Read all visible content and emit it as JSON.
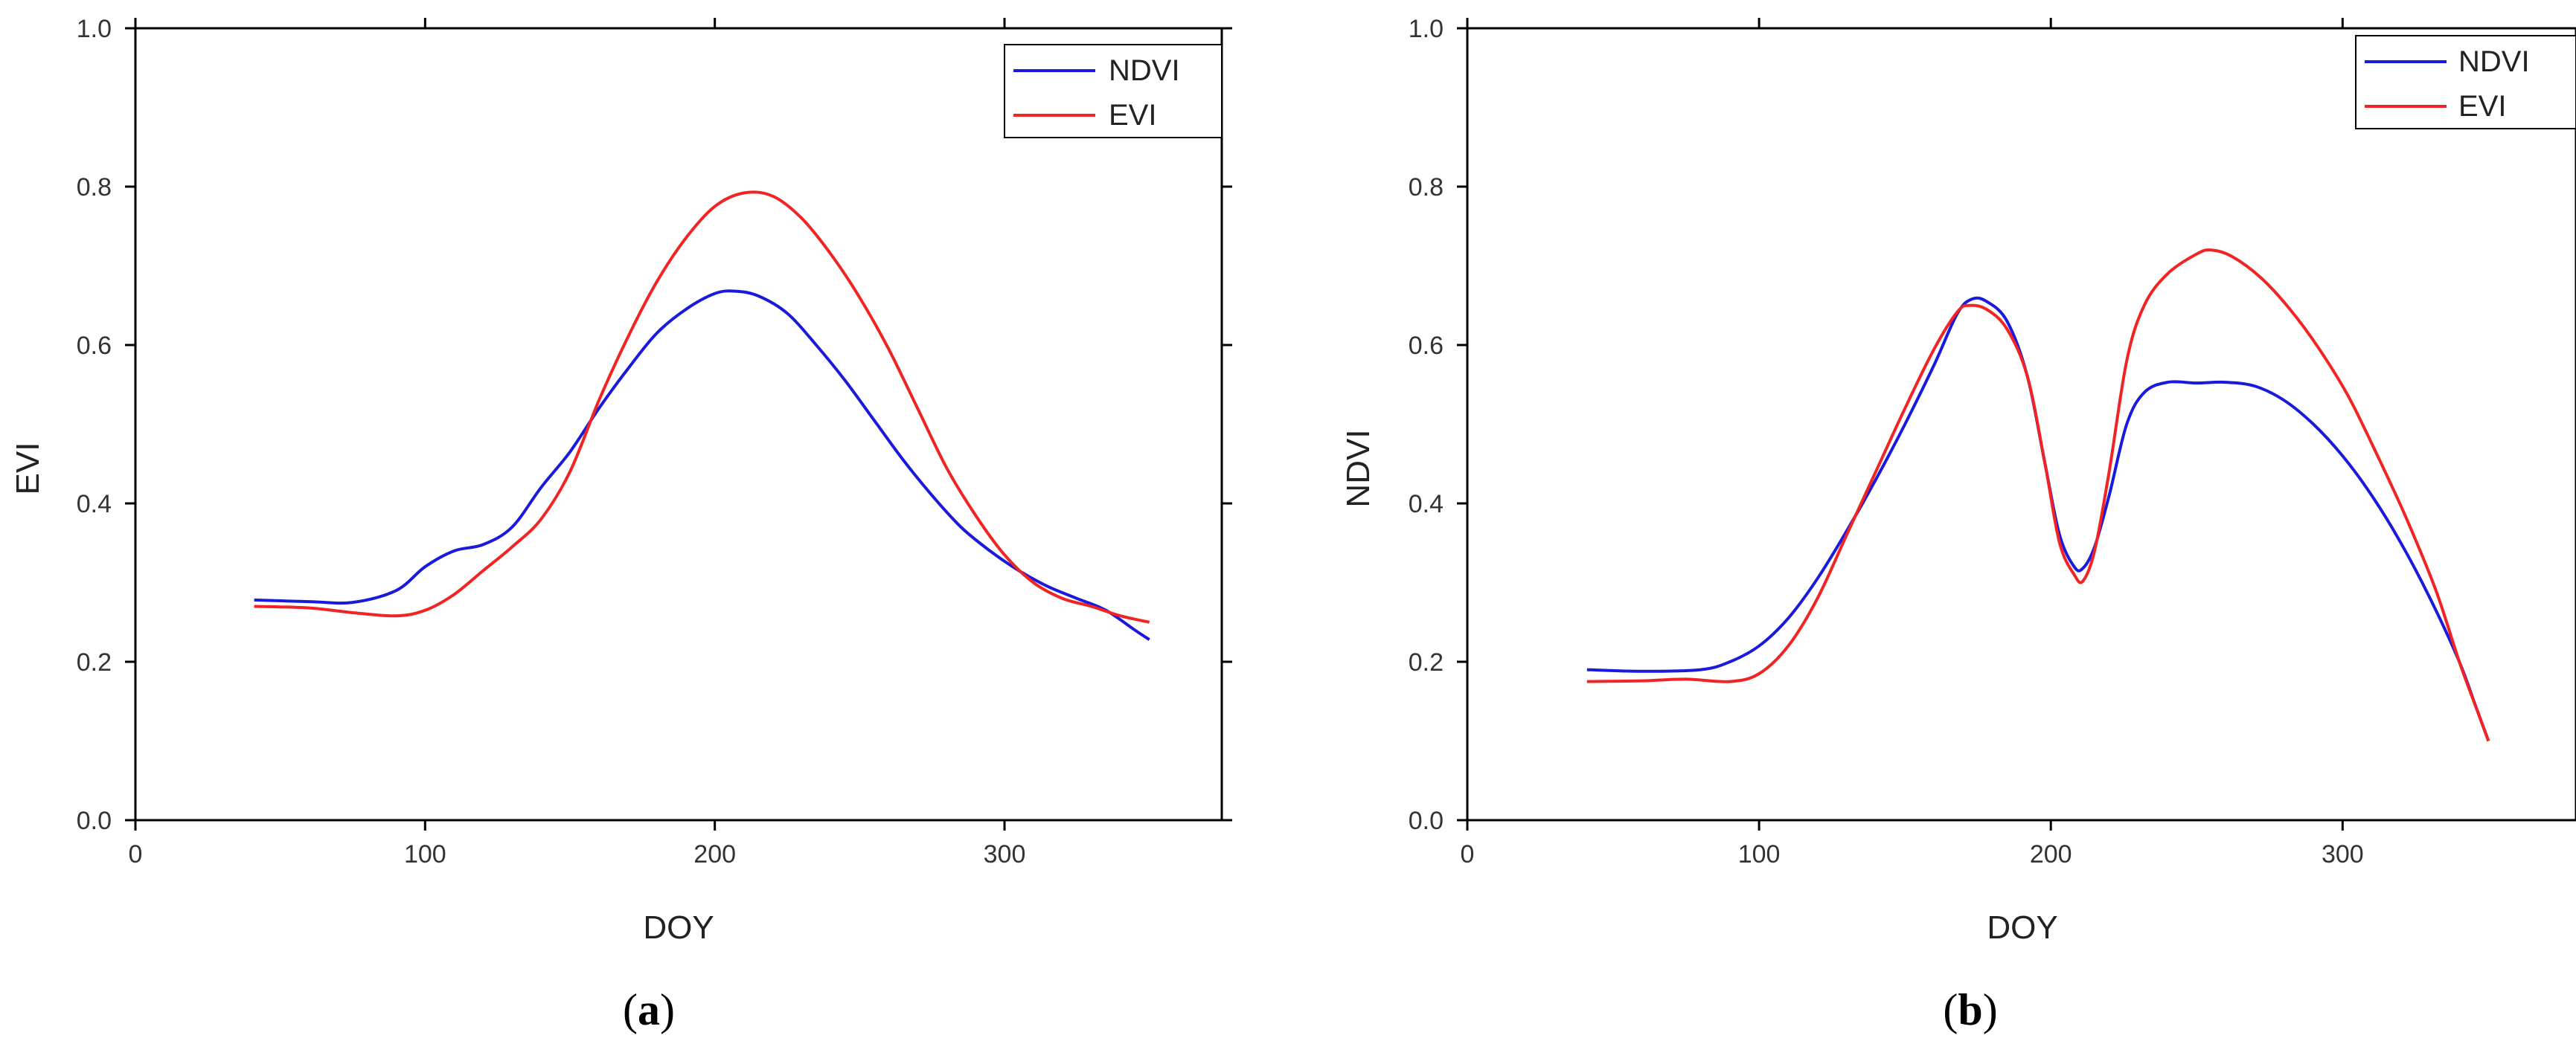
{
  "colors": {
    "ndvi": "#1a1adc",
    "evi": "#f22323",
    "axis": "#000000"
  },
  "chart_data": [
    {
      "type": "line",
      "panel": "(a)",
      "panel_parts": [
        "(",
        "a",
        ")"
      ],
      "xlabel": "DOY",
      "ylabel": "EVI",
      "xlim": [
        0,
        375
      ],
      "ylim": [
        0.0,
        1.0
      ],
      "xticks": [
        0,
        100,
        200,
        300
      ],
      "xtick_labels": [
        "0",
        "100",
        "200",
        "300"
      ],
      "yticks": [
        0.0,
        0.2,
        0.4,
        0.6,
        0.8,
        1.0
      ],
      "ytick_labels": [
        "0.0",
        "0.2",
        "0.4",
        "0.6",
        "0.8",
        "1.0"
      ],
      "legend_position": "top-right",
      "series": [
        {
          "name": "NDVI",
          "color": "#1a1adc",
          "points": [
            [
              41,
              0.278
            ],
            [
              60,
              0.276
            ],
            [
              75,
              0.275
            ],
            [
              90,
              0.29
            ],
            [
              100,
              0.32
            ],
            [
              110,
              0.34
            ],
            [
              120,
              0.348
            ],
            [
              130,
              0.37
            ],
            [
              140,
              0.42
            ],
            [
              150,
              0.465
            ],
            [
              160,
              0.52
            ],
            [
              170,
              0.57
            ],
            [
              180,
              0.615
            ],
            [
              190,
              0.645
            ],
            [
              200,
              0.665
            ],
            [
              207,
              0.668
            ],
            [
              215,
              0.662
            ],
            [
              225,
              0.64
            ],
            [
              235,
              0.6
            ],
            [
              245,
              0.555
            ],
            [
              255,
              0.505
            ],
            [
              265,
              0.455
            ],
            [
              275,
              0.41
            ],
            [
              285,
              0.37
            ],
            [
              295,
              0.34
            ],
            [
              305,
              0.315
            ],
            [
              315,
              0.295
            ],
            [
              325,
              0.28
            ],
            [
              335,
              0.265
            ],
            [
              345,
              0.24
            ],
            [
              350,
              0.228
            ]
          ]
        },
        {
          "name": "EVI",
          "color": "#f22323",
          "points": [
            [
              41,
              0.27
            ],
            [
              60,
              0.268
            ],
            [
              75,
              0.262
            ],
            [
              90,
              0.258
            ],
            [
              100,
              0.265
            ],
            [
              110,
              0.285
            ],
            [
              120,
              0.315
            ],
            [
              130,
              0.345
            ],
            [
              140,
              0.38
            ],
            [
              150,
              0.44
            ],
            [
              160,
              0.53
            ],
            [
              170,
              0.61
            ],
            [
              180,
              0.68
            ],
            [
              190,
              0.735
            ],
            [
              200,
              0.775
            ],
            [
              210,
              0.792
            ],
            [
              220,
              0.788
            ],
            [
              230,
              0.76
            ],
            [
              240,
              0.715
            ],
            [
              250,
              0.66
            ],
            [
              260,
              0.595
            ],
            [
              270,
              0.52
            ],
            [
              280,
              0.445
            ],
            [
              290,
              0.385
            ],
            [
              300,
              0.335
            ],
            [
              310,
              0.3
            ],
            [
              320,
              0.28
            ],
            [
              330,
              0.27
            ],
            [
              340,
              0.258
            ],
            [
              350,
              0.25
            ]
          ]
        }
      ]
    },
    {
      "type": "line",
      "panel": "(b)",
      "panel_parts": [
        "(",
        "b",
        ")"
      ],
      "xlabel": "DOY",
      "ylabel": "NDVI",
      "xlim": [
        0,
        380
      ],
      "ylim": [
        0.0,
        1.0
      ],
      "xticks": [
        0,
        100,
        200,
        300
      ],
      "xtick_labels": [
        "0",
        "100",
        "200",
        "300"
      ],
      "yticks": [
        0.0,
        0.2,
        0.4,
        0.6,
        0.8,
        1.0
      ],
      "ytick_labels": [
        "0.0",
        "0.2",
        "0.4",
        "0.6",
        "0.8",
        "1.0"
      ],
      "legend_position": "top-right",
      "series": [
        {
          "name": "NDVI",
          "color": "#1a1adc",
          "points": [
            [
              41,
              0.19
            ],
            [
              60,
              0.188
            ],
            [
              80,
              0.19
            ],
            [
              90,
              0.2
            ],
            [
              100,
              0.22
            ],
            [
              110,
              0.255
            ],
            [
              120,
              0.305
            ],
            [
              130,
              0.365
            ],
            [
              140,
              0.43
            ],
            [
              150,
              0.5
            ],
            [
              160,
              0.575
            ],
            [
              168,
              0.64
            ],
            [
              173,
              0.658
            ],
            [
              178,
              0.655
            ],
            [
              185,
              0.63
            ],
            [
              192,
              0.56
            ],
            [
              198,
              0.45
            ],
            [
              203,
              0.36
            ],
            [
              208,
              0.32
            ],
            [
              211,
              0.318
            ],
            [
              215,
              0.345
            ],
            [
              220,
              0.41
            ],
            [
              226,
              0.5
            ],
            [
              232,
              0.54
            ],
            [
              240,
              0.553
            ],
            [
              250,
              0.552
            ],
            [
              260,
              0.553
            ],
            [
              270,
              0.548
            ],
            [
              280,
              0.53
            ],
            [
              290,
              0.5
            ],
            [
              300,
              0.46
            ],
            [
              310,
              0.41
            ],
            [
              320,
              0.35
            ],
            [
              330,
              0.28
            ],
            [
              340,
              0.2
            ],
            [
              346,
              0.14
            ],
            [
              350,
              0.1
            ]
          ]
        },
        {
          "name": "EVI",
          "color": "#f22323",
          "points": [
            [
              41,
              0.175
            ],
            [
              60,
              0.176
            ],
            [
              75,
              0.178
            ],
            [
              90,
              0.175
            ],
            [
              100,
              0.185
            ],
            [
              110,
              0.22
            ],
            [
              120,
              0.28
            ],
            [
              130,
              0.36
            ],
            [
              140,
              0.44
            ],
            [
              150,
              0.52
            ],
            [
              160,
              0.595
            ],
            [
              168,
              0.642
            ],
            [
              172,
              0.65
            ],
            [
              178,
              0.645
            ],
            [
              185,
              0.62
            ],
            [
              192,
              0.56
            ],
            [
              198,
              0.45
            ],
            [
              203,
              0.35
            ],
            [
              208,
              0.31
            ],
            [
              211,
              0.302
            ],
            [
              215,
              0.34
            ],
            [
              220,
              0.44
            ],
            [
              226,
              0.58
            ],
            [
              232,
              0.65
            ],
            [
              240,
              0.69
            ],
            [
              250,
              0.715
            ],
            [
              255,
              0.72
            ],
            [
              262,
              0.712
            ],
            [
              272,
              0.685
            ],
            [
              282,
              0.645
            ],
            [
              292,
              0.595
            ],
            [
              302,
              0.535
            ],
            [
              312,
              0.46
            ],
            [
              322,
              0.38
            ],
            [
              332,
              0.29
            ],
            [
              340,
              0.2
            ],
            [
              346,
              0.14
            ],
            [
              350,
              0.1
            ]
          ]
        }
      ]
    }
  ]
}
